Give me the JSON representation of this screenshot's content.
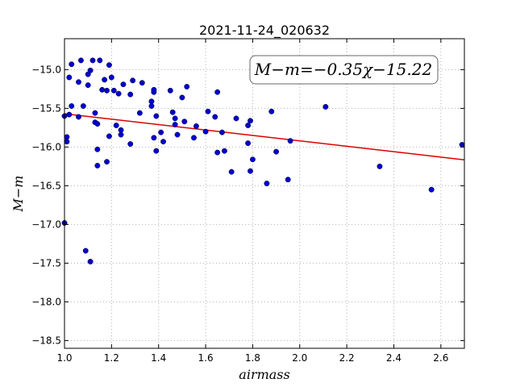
{
  "chart_data": {
    "type": "scatter",
    "title": "2021-11-24_020632",
    "xlabel": "airmass",
    "ylabel": "M−m",
    "xlim": [
      1.0,
      2.7
    ],
    "ylim": [
      -18.6,
      -14.6
    ],
    "y_inverted": true,
    "grid": true,
    "xticks": [
      1.0,
      1.2,
      1.4,
      1.6,
      1.8,
      2.0,
      2.2,
      2.4,
      2.6
    ],
    "xtick_labels": [
      "1.0",
      "1.2",
      "1.4",
      "1.6",
      "1.8",
      "2.0",
      "2.2",
      "2.4",
      "2.6"
    ],
    "yticks": [
      -15.0,
      -15.5,
      -16.0,
      -16.5,
      -17.0,
      -17.5,
      -18.0,
      -18.5
    ],
    "ytick_labels": [
      "−15.0",
      "−15.5",
      "−16.0",
      "−16.5",
      "−17.0",
      "−17.5",
      "−18.0",
      "−18.5"
    ],
    "annotation": "M−m=−0.35χ−15.22",
    "colors": {
      "points": "#0000cc",
      "fit": "#dd0000",
      "grid": "#b0b0b0"
    },
    "fit": {
      "slope": -0.35,
      "intercept": -15.22,
      "x_range": [
        1.0,
        2.7
      ]
    },
    "x": [
      1.0,
      1.0,
      1.01,
      1.01,
      1.02,
      1.02,
      1.03,
      1.03,
      1.06,
      1.06,
      1.07,
      1.08,
      1.09,
      1.1,
      1.1,
      1.11,
      1.11,
      1.12,
      1.13,
      1.13,
      1.14,
      1.14,
      1.14,
      1.15,
      1.16,
      1.17,
      1.18,
      1.18,
      1.19,
      1.19,
      1.2,
      1.21,
      1.22,
      1.23,
      1.24,
      1.24,
      1.25,
      1.28,
      1.28,
      1.29,
      1.32,
      1.33,
      1.37,
      1.37,
      1.38,
      1.38,
      1.38,
      1.39,
      1.39,
      1.41,
      1.42,
      1.45,
      1.46,
      1.47,
      1.47,
      1.48,
      1.5,
      1.51,
      1.52,
      1.55,
      1.56,
      1.6,
      1.61,
      1.64,
      1.65,
      1.65,
      1.67,
      1.68,
      1.71,
      1.73,
      1.78,
      1.78,
      1.79,
      1.79,
      1.8,
      1.86,
      1.88,
      1.9,
      1.95,
      1.96,
      2.11,
      2.34,
      2.56,
      2.69
    ],
    "y": [
      -15.6,
      -16.98,
      -15.87,
      -15.93,
      -15.1,
      -15.58,
      -14.93,
      -15.47,
      -15.61,
      -15.16,
      -14.88,
      -15.47,
      -17.34,
      -15.06,
      -15.2,
      -17.48,
      -15.01,
      -14.88,
      -15.56,
      -15.68,
      -15.7,
      -16.24,
      -16.03,
      -14.88,
      -15.26,
      -15.13,
      -16.19,
      -15.27,
      -14.94,
      -15.86,
      -15.1,
      -15.27,
      -15.72,
      -15.31,
      -15.84,
      -15.78,
      -15.19,
      -15.32,
      -15.96,
      -15.14,
      -15.56,
      -15.17,
      -15.47,
      -15.41,
      -15.29,
      -15.88,
      -15.26,
      -16.05,
      -15.6,
      -15.81,
      -15.93,
      -15.27,
      -15.55,
      -15.63,
      -15.71,
      -15.84,
      -15.36,
      -15.67,
      -15.22,
      -15.88,
      -15.73,
      -15.8,
      -15.54,
      -15.61,
      -15.29,
      -16.07,
      -15.81,
      -16.05,
      -16.32,
      -15.63,
      -15.95,
      -15.72,
      -15.66,
      -16.31,
      -16.16,
      -16.47,
      -15.54,
      -16.06,
      -16.42,
      -15.92,
      -15.48,
      -16.25,
      -16.55,
      -15.97
    ]
  }
}
